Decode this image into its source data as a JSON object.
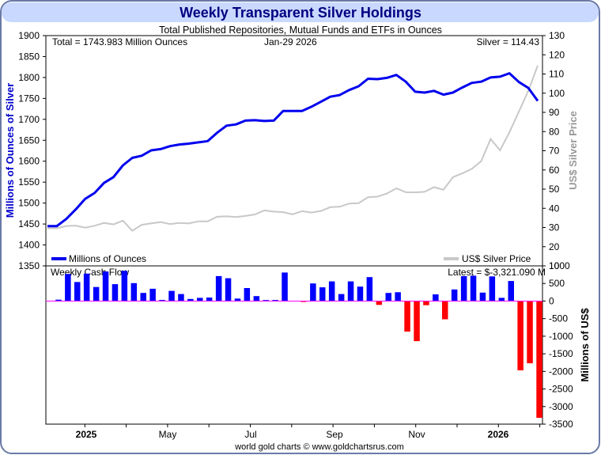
{
  "title": "Weekly Transparent Silver Holdings",
  "subtitle": "Total Published Repositories, Mutual Funds and ETFs in Ounces",
  "footer": "world gold charts © www.goldchartsrus.com",
  "colors": {
    "title_bg": "#c8d8ff",
    "title_text": "#000080",
    "holdings_line": "#0000ee",
    "price_line": "#c8c8c8",
    "inflow_bar": "#0000ff",
    "outflow_bar": "#ff0000",
    "zero_line": "#ff00ff"
  },
  "chart_data": [
    {
      "type": "line",
      "title": "",
      "info": {
        "total_label": "Total = 1743.983 Million Ounces",
        "date_label": "Jan-29  2026",
        "silver_label": "Silver = 114.43"
      },
      "ylabel": "Millions of Ounces of Silver",
      "y2label": "US$ Silver Price",
      "ylim": [
        1350,
        1900
      ],
      "y_ticks": [
        "1900",
        "1850",
        "1800",
        "1750",
        "1700",
        "1650",
        "1600",
        "1550",
        "1500",
        "1450",
        "1400",
        "1350"
      ],
      "y2lim": [
        10,
        130
      ],
      "y2_ticks": [
        "130",
        "120",
        "110",
        "100",
        "90",
        "80",
        "70",
        "60",
        "50",
        "40",
        "30",
        "20",
        "10"
      ],
      "legend": [
        "Millions of Ounces",
        "US$ Silver Price"
      ],
      "x_ticks": [
        "2025",
        "May",
        "Jul",
        "Sep",
        "Nov",
        "2026"
      ],
      "series": [
        {
          "name": "Millions of Ounces",
          "values": [
            1445,
            1445,
            1462,
            1485,
            1510,
            1524,
            1548,
            1562,
            1590,
            1608,
            1613,
            1626,
            1629,
            1636,
            1640,
            1642,
            1645,
            1648,
            1668,
            1685,
            1688,
            1697,
            1698,
            1696,
            1697,
            1720,
            1720,
            1720,
            1730,
            1742,
            1754,
            1758,
            1770,
            1779,
            1797,
            1796,
            1799,
            1806,
            1790,
            1766,
            1764,
            1768,
            1759,
            1764,
            1776,
            1787,
            1790,
            1800,
            1802,
            1810,
            1789,
            1775,
            1744
          ]
        },
        {
          "name": "US$ Silver Price",
          "values": [
            29.6,
            29.6,
            30.8,
            31.0,
            29.9,
            30.9,
            32.4,
            31.6,
            33.6,
            28.3,
            31.4,
            32.2,
            32.8,
            31.8,
            32.4,
            32.1,
            33.2,
            33.2,
            35.6,
            35.8,
            35.5,
            36.0,
            36.8,
            38.9,
            38.3,
            38.0,
            36.9,
            38.5,
            37.8,
            38.6,
            40.6,
            40.8,
            42.5,
            42.7,
            45.8,
            46.1,
            47.7,
            50.4,
            48.4,
            48.3,
            48.6,
            51.0,
            49.7,
            56.2,
            58.2,
            60.5,
            64.6,
            76.1,
            70.2,
            79.6,
            90.4,
            101.2,
            114.43
          ]
        }
      ]
    },
    {
      "type": "bar",
      "title": "Weekly Cash Flow",
      "latest_label": "Latest = $-3,321.090 M",
      "ylabel": "Millions of US$",
      "ylim": [
        -3500,
        1000
      ],
      "y_ticks": [
        "1000",
        "500",
        "0",
        "-500",
        "-1000",
        "-1500",
        "-2000",
        "-2500",
        "-3000",
        "-3500"
      ],
      "x_ticks": [
        "2025",
        "May",
        "Jul",
        "Sep",
        "Nov",
        "2026"
      ],
      "values": [
        0,
        40,
        770,
        540,
        780,
        400,
        840,
        480,
        860,
        510,
        230,
        350,
        30,
        290,
        200,
        60,
        90,
        100,
        710,
        650,
        70,
        370,
        140,
        20,
        30,
        810,
        0,
        -20,
        500,
        390,
        560,
        200,
        560,
        410,
        680,
        -110,
        230,
        250,
        -870,
        -1140,
        -120,
        190,
        -520,
        330,
        710,
        720,
        240,
        700,
        90,
        570,
        -1970,
        -1770,
        -3321.09
      ]
    }
  ]
}
